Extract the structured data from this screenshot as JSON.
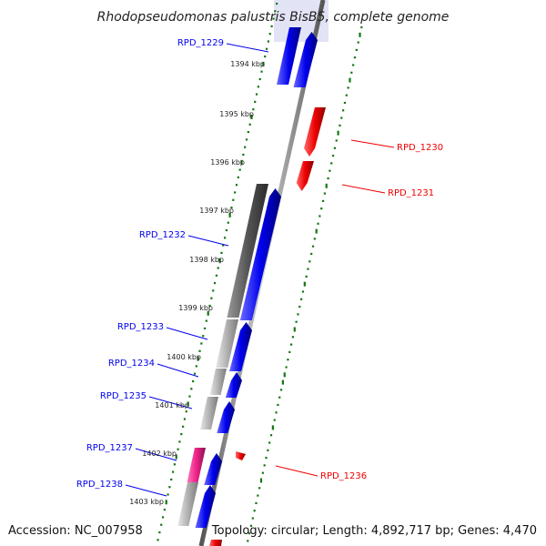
{
  "title": "Rhodopseudomonas palustris BisB5, complete genome",
  "footer": {
    "accession": "Accession: NC_007958",
    "summary": "Topology: circular; Length: 4,892,717 bp; Genes: 4,470"
  },
  "colors": {
    "forward_strand": "#0000ee",
    "reverse_strand": "#ee0000",
    "pseudo_gene": "#555555",
    "other_gene": "#aaaaaa",
    "highlight_gene": "#ee2288",
    "tick_marks": "#117711",
    "backbone": "#888888"
  },
  "map": {
    "kbp_labels": [
      "1394 kbp",
      "1395 kbp",
      "1396 kbp",
      "1397 kbp",
      "1398 kbp",
      "1399 kbp",
      "1400 kbp",
      "1401 kbp",
      "1402 kbp",
      "1403 kbp"
    ],
    "gene_labels": [
      {
        "text": "RPD_1229",
        "strand": "forward"
      },
      {
        "text": "RPD_1230",
        "strand": "reverse"
      },
      {
        "text": "RPD_1231",
        "strand": "reverse"
      },
      {
        "text": "RPD_1232",
        "strand": "forward"
      },
      {
        "text": "RPD_1233",
        "strand": "forward"
      },
      {
        "text": "RPD_1234",
        "strand": "forward"
      },
      {
        "text": "RPD_1235",
        "strand": "forward"
      },
      {
        "text": "RPD_1236",
        "strand": "reverse"
      },
      {
        "text": "RPD_1237",
        "strand": "forward"
      },
      {
        "text": "RPD_1238",
        "strand": "forward"
      }
    ]
  }
}
